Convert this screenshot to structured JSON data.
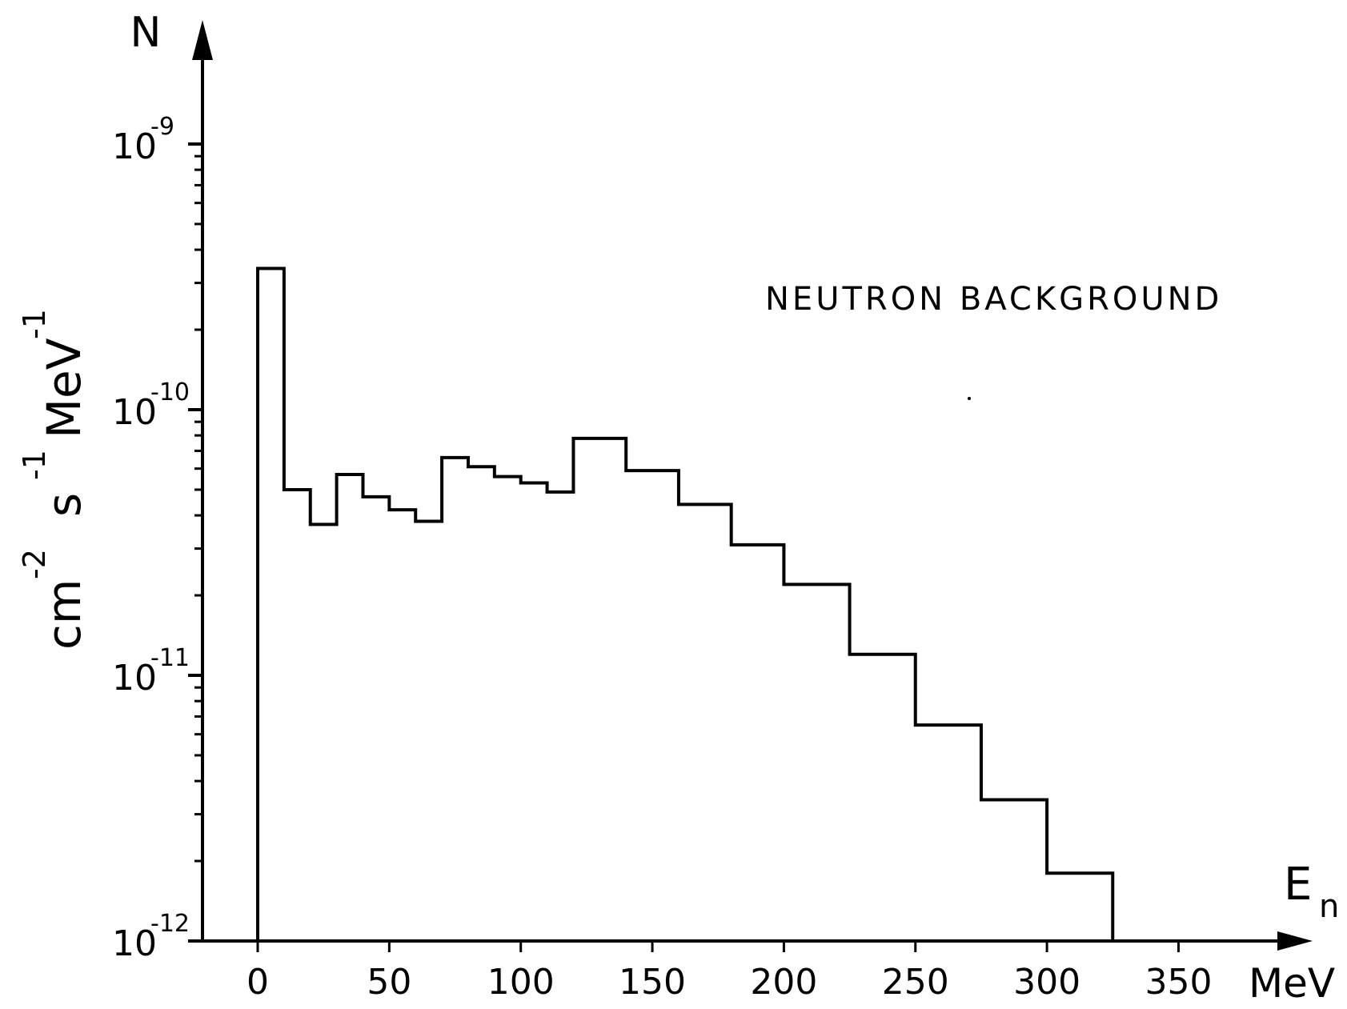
{
  "chart_data": {
    "type": "line",
    "title": "NEUTRON BACKGROUND",
    "step": true,
    "y_scale": "log",
    "ylabel_text": {
      "cm": "cm",
      "s": "s",
      "mev": "MeV",
      "exp_m2": "-2",
      "exp_m1a": "-1",
      "exp_m1b": "-1"
    },
    "y_axis_letter": "N",
    "x_axis_symbol": {
      "base": "E",
      "sub": "n"
    },
    "x_axis_unit": "MeV",
    "xlim": [
      -25,
      400
    ],
    "ylim_exp": [
      -12,
      -8.6
    ],
    "x_ticks": [
      0,
      50,
      100,
      150,
      200,
      250,
      300,
      350
    ],
    "x_tick_labels": [
      "0",
      "50",
      "100",
      "150",
      "200",
      "250",
      "300",
      "350"
    ],
    "y_ticks": [
      {
        "exp": -9,
        "base": "10",
        "sup": "-9"
      },
      {
        "exp": -10,
        "base": "10",
        "sup": "-10"
      },
      {
        "exp": -11,
        "base": "10",
        "sup": "-11"
      },
      {
        "exp": -12,
        "base": "10",
        "sup": "-12"
      }
    ],
    "bin_edges": [
      0,
      10,
      20,
      30,
      40,
      50,
      60,
      70,
      80,
      90,
      100,
      110,
      120,
      140,
      160,
      180,
      200,
      225,
      250,
      275,
      300,
      325
    ],
    "values": [
      3.4e-10,
      5e-11,
      3.7e-11,
      5.7e-11,
      4.7e-11,
      4.2e-11,
      3.8e-11,
      6.6e-11,
      6.1e-11,
      5.6e-11,
      5.3e-11,
      4.9e-11,
      7.8e-11,
      5.9e-11,
      4.4e-11,
      3.1e-11,
      2.2e-11,
      1.2e-11,
      6.5e-12,
      3.4e-12,
      1.8e-12
    ],
    "grid": false,
    "color": "#000000"
  }
}
